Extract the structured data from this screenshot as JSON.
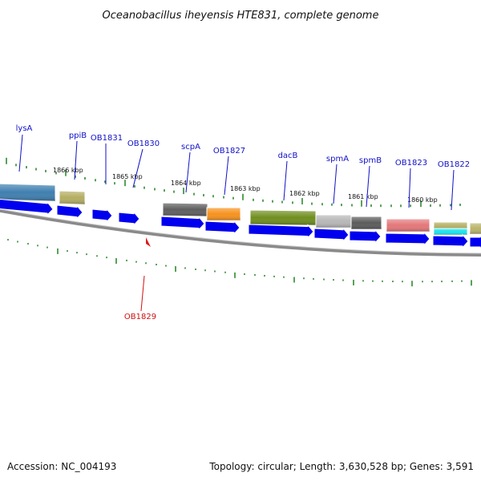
{
  "title": "Oceanobacillus iheyensis HTE831, complete genome",
  "footer": {
    "accession": "Accession: NC_004193",
    "summary": "Topology: circular; Length: 3,630,528 bp; Genes: 3,591"
  },
  "colors": {
    "gene_label": "#1010c8",
    "highlight_label": "#d01010",
    "tick": "#2e8b2e",
    "cds_arrow": "#0000ee",
    "backbone": "#8a8a8a"
  },
  "kbp_labels": [
    "1866 kbp",
    "1865 kbp",
    "1864 kbp",
    "1863 kbp",
    "1862 kbp",
    "1861 kbp",
    "1860 kbp"
  ],
  "gene_labels": [
    "lysA",
    "ppiB",
    "OB1831",
    "OB1830",
    "scpA",
    "OB1827",
    "dacB",
    "spmA",
    "spmB",
    "OB1823",
    "OB1822"
  ],
  "highlight_gene": "OB1829",
  "marker_icon": "red-triangle-marker-icon"
}
